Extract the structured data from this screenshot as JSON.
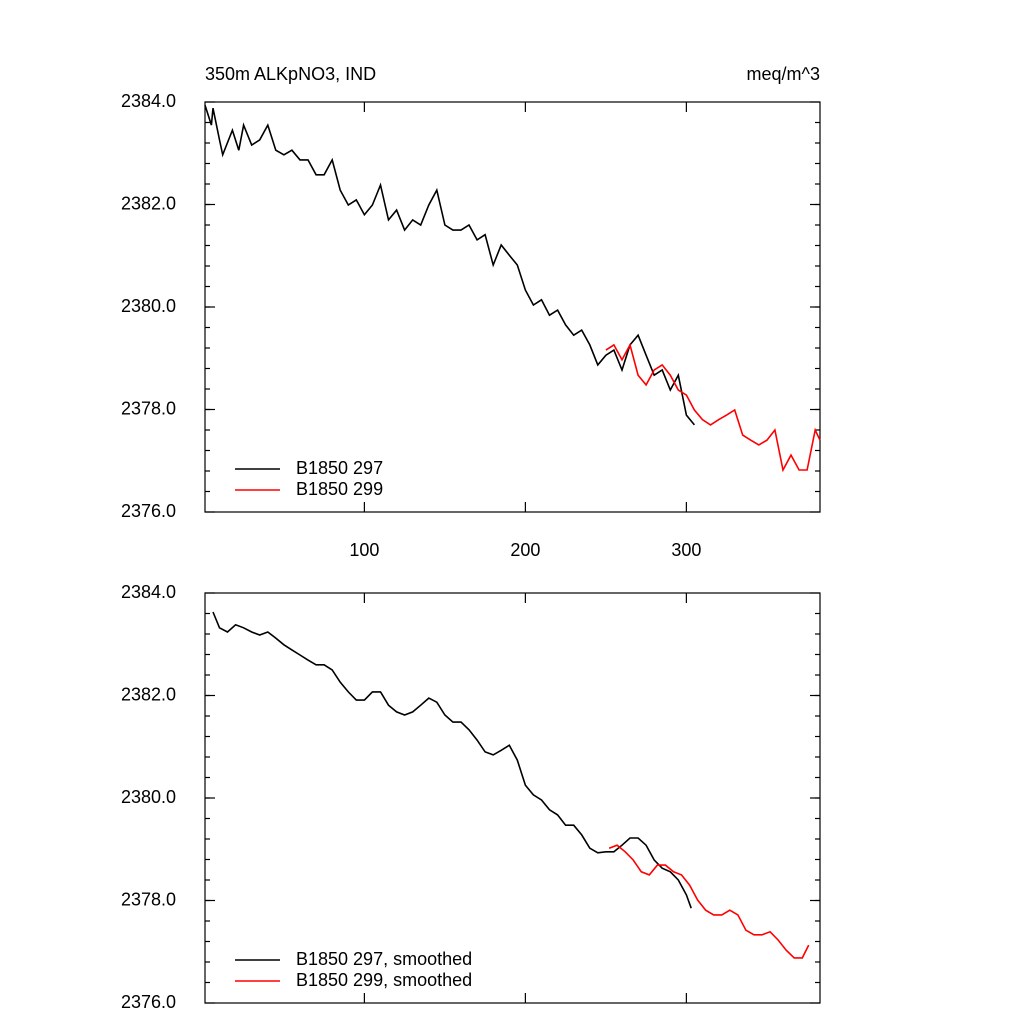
{
  "chart_data": [
    {
      "type": "line",
      "title": "350m ALKpNO3, IND",
      "units": "meq/m^3",
      "xlim": [
        1,
        383
      ],
      "xticks": [
        100,
        200,
        300
      ],
      "show_xtick_labels": true,
      "ylim": [
        2376,
        2384
      ],
      "yticks": [
        {
          "value": 2376,
          "label": "2376.0"
        },
        {
          "value": 2378,
          "label": "2378.0"
        },
        {
          "value": 2380,
          "label": "2380.0"
        },
        {
          "value": 2382,
          "label": "2382.0"
        },
        {
          "value": 2384,
          "label": "2384.0"
        }
      ],
      "yminor": 0.4,
      "legend": "lower-left",
      "series": [
        {
          "name": "B1850 297",
          "color": "#000000",
          "x": [
            1,
            5,
            6,
            10,
            12,
            18,
            22,
            25,
            30,
            35,
            40,
            45,
            50,
            55,
            60,
            65,
            70,
            75,
            80,
            85,
            90,
            95,
            100,
            105,
            110,
            115,
            120,
            125,
            130,
            135,
            140,
            145,
            150,
            155,
            160,
            165,
            170,
            175,
            180,
            185,
            190,
            195,
            200,
            205,
            210,
            215,
            220,
            225,
            230,
            235,
            240,
            245,
            250,
            255,
            260,
            265,
            270,
            275,
            280,
            285,
            290,
            295,
            300,
            305
          ],
          "values": [
            2383.94,
            2383.55,
            2383.88,
            2383.26,
            2382.97,
            2383.45,
            2383.06,
            2383.55,
            2383.16,
            2383.26,
            2383.55,
            2383.06,
            2382.97,
            2383.06,
            2382.87,
            2382.87,
            2382.58,
            2382.58,
            2382.87,
            2382.28,
            2381.99,
            2382.09,
            2381.8,
            2381.99,
            2382.38,
            2381.7,
            2381.89,
            2381.5,
            2381.7,
            2381.6,
            2381.99,
            2382.28,
            2381.6,
            2381.5,
            2381.5,
            2381.6,
            2381.31,
            2381.41,
            2380.82,
            2381.21,
            2381.01,
            2380.82,
            2380.33,
            2380.04,
            2380.14,
            2379.84,
            2379.94,
            2379.65,
            2379.45,
            2379.55,
            2379.26,
            2378.87,
            2379.06,
            2379.16,
            2378.77,
            2379.26,
            2379.45,
            2379.06,
            2378.67,
            2378.77,
            2378.38,
            2378.67,
            2377.89,
            2377.7
          ]
        },
        {
          "name": "B1850 299",
          "color": "#ff0000",
          "x": [
            250,
            255,
            260,
            265,
            270,
            275,
            280,
            285,
            290,
            295,
            300,
            305,
            310,
            315,
            320,
            325,
            330,
            335,
            340,
            345,
            350,
            355,
            360,
            365,
            370,
            375,
            380,
            383
          ],
          "values": [
            2379.16,
            2379.26,
            2378.97,
            2379.26,
            2378.67,
            2378.48,
            2378.77,
            2378.87,
            2378.67,
            2378.38,
            2378.28,
            2377.99,
            2377.8,
            2377.7,
            2377.8,
            2377.89,
            2377.99,
            2377.5,
            2377.4,
            2377.31,
            2377.4,
            2377.6,
            2376.82,
            2377.11,
            2376.82,
            2376.82,
            2377.6,
            2377.4
          ]
        }
      ]
    },
    {
      "type": "line",
      "xlim": [
        1,
        383
      ],
      "xticks": [
        100,
        200,
        300
      ],
      "show_xtick_labels": false,
      "ylim": [
        2376,
        2384
      ],
      "yticks": [
        {
          "value": 2376,
          "label": "2376.0"
        },
        {
          "value": 2378,
          "label": "2378.0"
        },
        {
          "value": 2380,
          "label": "2380.0"
        },
        {
          "value": 2382,
          "label": "2382.0"
        },
        {
          "value": 2384,
          "label": "2384.0"
        }
      ],
      "yminor": 0.4,
      "legend": "lower-left",
      "series": [
        {
          "name": "B1850 297, smoothed",
          "color": "#000000",
          "x": [
            6,
            10,
            15,
            20,
            25,
            30,
            35,
            40,
            45,
            50,
            55,
            60,
            65,
            70,
            75,
            80,
            85,
            90,
            95,
            100,
            105,
            110,
            115,
            120,
            125,
            130,
            135,
            140,
            145,
            150,
            155,
            160,
            165,
            170,
            175,
            180,
            185,
            190,
            195,
            200,
            205,
            210,
            215,
            220,
            225,
            230,
            235,
            240,
            245,
            250,
            255,
            260,
            265,
            270,
            275,
            280,
            285,
            290,
            295,
            300,
            303
          ],
          "values": [
            2383.63,
            2383.32,
            2383.24,
            2383.38,
            2383.32,
            2383.24,
            2383.18,
            2383.24,
            2383.12,
            2382.99,
            2382.89,
            2382.79,
            2382.69,
            2382.6,
            2382.6,
            2382.5,
            2382.26,
            2382.07,
            2381.91,
            2381.91,
            2382.07,
            2382.07,
            2381.81,
            2381.68,
            2381.62,
            2381.68,
            2381.81,
            2381.95,
            2381.87,
            2381.62,
            2381.48,
            2381.48,
            2381.33,
            2381.13,
            2380.9,
            2380.84,
            2380.93,
            2381.03,
            2380.74,
            2380.25,
            2380.06,
            2379.96,
            2379.77,
            2379.67,
            2379.47,
            2379.47,
            2379.28,
            2379.02,
            2378.93,
            2378.95,
            2378.95,
            2379.08,
            2379.22,
            2379.22,
            2379.08,
            2378.79,
            2378.63,
            2378.56,
            2378.4,
            2378.11,
            2377.85
          ]
        },
        {
          "name": "B1850 299, smoothed",
          "color": "#ff0000",
          "x": [
            252,
            257,
            262,
            267,
            272,
            277,
            282,
            287,
            292,
            297,
            302,
            307,
            312,
            317,
            322,
            327,
            332,
            337,
            342,
            347,
            352,
            357,
            362,
            367,
            372,
            376
          ],
          "values": [
            2379.02,
            2379.08,
            2378.95,
            2378.79,
            2378.56,
            2378.5,
            2378.69,
            2378.69,
            2378.56,
            2378.5,
            2378.3,
            2378.01,
            2377.81,
            2377.72,
            2377.72,
            2377.81,
            2377.72,
            2377.42,
            2377.33,
            2377.33,
            2377.39,
            2377.23,
            2377.03,
            2376.88,
            2376.88,
            2377.13
          ]
        }
      ]
    }
  ]
}
